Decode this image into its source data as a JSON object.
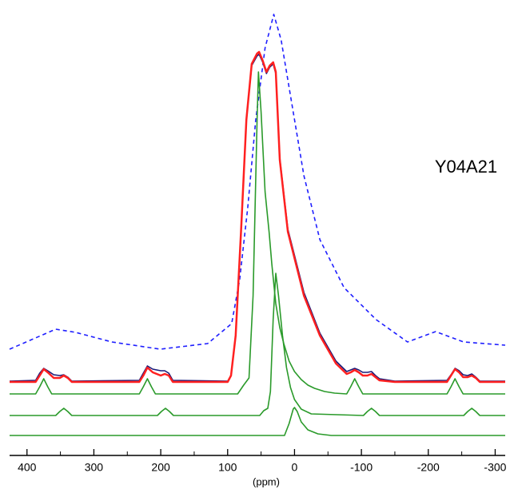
{
  "chart_data": {
    "type": "line",
    "x_label": "(ppm)",
    "annotation": "Y04A21",
    "xlim": [
      426,
      -315
    ],
    "ylim": [
      0,
      560
    ],
    "xticks": [
      400,
      300,
      200,
      100,
      0,
      -100,
      -200,
      -300
    ],
    "xminorticks": [
      350,
      250,
      150,
      50,
      -50,
      -150,
      -250
    ],
    "series": [
      {
        "color": "#1f1fff",
        "dash": true,
        "x": [
          426,
          357,
          327,
          273,
          201,
          130,
          94,
          82,
          70,
          58,
          44,
          31,
          20,
          4,
          -14,
          -38,
          -74,
          -122,
          -169,
          -211,
          -253,
          -315
        ],
        "values": [
          133,
          158,
          154,
          142,
          133,
          140,
          165,
          220,
          310,
          420,
          510,
          552,
          520,
          440,
          350,
          270,
          210,
          170,
          142,
          155,
          142,
          138
        ]
      },
      {
        "color": "#2a9a2a",
        "x": [
          426,
          387,
          381,
          375,
          369,
          363,
          232,
          226,
          220,
          214,
          208,
          85,
          76,
          68,
          62,
          56,
          54,
          50,
          44,
          38,
          34,
          28,
          22,
          16,
          8,
          0,
          -10,
          -20,
          -30,
          -45,
          -60,
          -78,
          -84,
          -90,
          -96,
          -102,
          -228,
          -234,
          -240,
          -246,
          -252,
          -315
        ],
        "values": [
          77,
          77,
          86,
          96,
          86,
          77,
          77,
          86,
          96,
          86,
          77,
          77,
          88,
          97,
          200,
          420,
          480,
          430,
          330,
          280,
          240,
          190,
          160,
          140,
          118,
          105,
          95,
          88,
          84,
          80,
          78,
          77,
          86,
          96,
          86,
          77,
          77,
          86,
          96,
          86,
          77,
          77
        ]
      },
      {
        "color": "#2a9a2a",
        "x": [
          426,
          357,
          351,
          345,
          339,
          333,
          205,
          199,
          193,
          187,
          181,
          52,
          46,
          40,
          36,
          32,
          28,
          24,
          18,
          12,
          6,
          0,
          -10,
          -25,
          -103,
          -109,
          -115,
          -121,
          -127,
          -253,
          -259,
          -265,
          -271,
          -277,
          -315
        ],
        "values": [
          50,
          50,
          55,
          59,
          55,
          50,
          50,
          55,
          59,
          55,
          50,
          50,
          56,
          59,
          80,
          170,
          228,
          200,
          150,
          110,
          85,
          70,
          58,
          52,
          50,
          55,
          59,
          55,
          50,
          50,
          55,
          59,
          55,
          50,
          50
        ]
      },
      {
        "color": "#2a9a2a",
        "x": [
          426,
          15,
          8,
          2,
          0,
          -4,
          -10,
          -20,
          -35,
          -55,
          -315
        ],
        "values": [
          25,
          25,
          40,
          58,
          60,
          55,
          42,
          32,
          27,
          25,
          25
        ]
      },
      {
        "color": "#1a1a78",
        "x": [
          426,
          387,
          381,
          375,
          369,
          360,
          351,
          345,
          339,
          333,
          232,
          226,
          220,
          212,
          200,
          194,
          188,
          182,
          100,
          95,
          88,
          80,
          72,
          64,
          56,
          53,
          48,
          42,
          37,
          32,
          28,
          22,
          10,
          -14,
          -38,
          -62,
          -78,
          -84,
          -90,
          -96,
          -102,
          -109,
          -115,
          -121,
          -127,
          -150,
          -228,
          -234,
          -240,
          -246,
          -252,
          -259,
          -265,
          -271,
          -277,
          -315
        ],
        "values": [
          93,
          94,
          103,
          109,
          106,
          101,
          100,
          101,
          98,
          93,
          94,
          103,
          112,
          108,
          106,
          106,
          103,
          94,
          93,
          100,
          150,
          280,
          420,
          488,
          500,
          502,
          493,
          478,
          486,
          490,
          478,
          372,
          283,
          204,
          153,
          118,
          105,
          107,
          109,
          107,
          104,
          104,
          105,
          100,
          96,
          93,
          94,
          101,
          109,
          106,
          101,
          100,
          102,
          98,
          93,
          93
        ]
      },
      {
        "color": "#ff2020",
        "x": [
          426,
          387,
          381,
          375,
          369,
          360,
          351,
          345,
          339,
          333,
          232,
          226,
          220,
          212,
          200,
          194,
          188,
          182,
          100,
          95,
          88,
          80,
          72,
          64,
          56,
          53,
          48,
          42,
          37,
          32,
          28,
          22,
          10,
          -14,
          -38,
          -62,
          -78,
          -84,
          -90,
          -96,
          -102,
          -109,
          -115,
          -121,
          -127,
          -150,
          -228,
          -234,
          -240,
          -246,
          -252,
          -259,
          -265,
          -271,
          -277,
          -315
        ],
        "values": [
          92,
          92,
          100,
          108,
          104,
          97,
          97,
          100,
          97,
          92,
          92,
          100,
          110,
          104,
          100,
          102,
          100,
          92,
          92,
          100,
          150,
          280,
          420,
          490,
          503,
          505,
          495,
          480,
          488,
          492,
          480,
          370,
          280,
          200,
          150,
          115,
          102,
          104,
          107,
          104,
          100,
          100,
          102,
          98,
          94,
          92,
          92,
          100,
          108,
          104,
          98,
          98,
          100,
          97,
          92,
          92
        ]
      }
    ]
  }
}
